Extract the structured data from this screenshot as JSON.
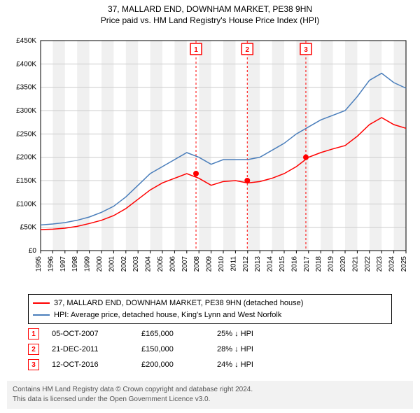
{
  "title": "37, MALLARD END, DOWNHAM MARKET, PE38 9HN",
  "subtitle": "Price paid vs. HM Land Registry's House Price Index (HPI)",
  "chart": {
    "type": "line",
    "background_color": "#ffffff",
    "plot_bg_alt": "#f0f0f0",
    "grid_color": "#cccccc",
    "axis_color": "#000000",
    "axis_fontsize": 10,
    "xlim": [
      1995,
      2025
    ],
    "ylim": [
      0,
      450000
    ],
    "ytick_step": 50000,
    "yticks": [
      "£0",
      "£50K",
      "£100K",
      "£150K",
      "£200K",
      "£250K",
      "£300K",
      "£350K",
      "£400K",
      "£450K"
    ],
    "xticks": [
      "1995",
      "1996",
      "1997",
      "1998",
      "1999",
      "2000",
      "2001",
      "2002",
      "2003",
      "2004",
      "2005",
      "2006",
      "2007",
      "2008",
      "2009",
      "2010",
      "2011",
      "2012",
      "2013",
      "2014",
      "2015",
      "2016",
      "2017",
      "2018",
      "2019",
      "2020",
      "2021",
      "2022",
      "2023",
      "2024",
      "2025"
    ],
    "series": [
      {
        "name": "property_price",
        "label": "37, MALLARD END, DOWNHAM MARKET, PE38 9HN (detached house)",
        "color": "#ff0000",
        "line_width": 1.5,
        "points": [
          [
            1995,
            45000
          ],
          [
            1996,
            46000
          ],
          [
            1997,
            48000
          ],
          [
            1998,
            52000
          ],
          [
            1999,
            58000
          ],
          [
            2000,
            65000
          ],
          [
            2001,
            75000
          ],
          [
            2002,
            90000
          ],
          [
            2003,
            110000
          ],
          [
            2004,
            130000
          ],
          [
            2005,
            145000
          ],
          [
            2006,
            155000
          ],
          [
            2007,
            165000
          ],
          [
            2008,
            155000
          ],
          [
            2009,
            140000
          ],
          [
            2010,
            148000
          ],
          [
            2011,
            150000
          ],
          [
            2012,
            145000
          ],
          [
            2013,
            148000
          ],
          [
            2014,
            155000
          ],
          [
            2015,
            165000
          ],
          [
            2016,
            180000
          ],
          [
            2017,
            200000
          ],
          [
            2018,
            210000
          ],
          [
            2019,
            218000
          ],
          [
            2020,
            225000
          ],
          [
            2021,
            245000
          ],
          [
            2022,
            270000
          ],
          [
            2023,
            285000
          ],
          [
            2024,
            270000
          ],
          [
            2025,
            262000
          ]
        ]
      },
      {
        "name": "hpi",
        "label": "HPI: Average price, detached house, King's Lynn and West Norfolk",
        "color": "#4a7ebb",
        "line_width": 1.5,
        "points": [
          [
            1995,
            55000
          ],
          [
            1996,
            57000
          ],
          [
            1997,
            60000
          ],
          [
            1998,
            65000
          ],
          [
            1999,
            72000
          ],
          [
            2000,
            82000
          ],
          [
            2001,
            95000
          ],
          [
            2002,
            115000
          ],
          [
            2003,
            140000
          ],
          [
            2004,
            165000
          ],
          [
            2005,
            180000
          ],
          [
            2006,
            195000
          ],
          [
            2007,
            210000
          ],
          [
            2008,
            200000
          ],
          [
            2009,
            185000
          ],
          [
            2010,
            195000
          ],
          [
            2011,
            195000
          ],
          [
            2012,
            195000
          ],
          [
            2013,
            200000
          ],
          [
            2014,
            215000
          ],
          [
            2015,
            230000
          ],
          [
            2016,
            250000
          ],
          [
            2017,
            265000
          ],
          [
            2018,
            280000
          ],
          [
            2019,
            290000
          ],
          [
            2020,
            300000
          ],
          [
            2021,
            330000
          ],
          [
            2022,
            365000
          ],
          [
            2023,
            380000
          ],
          [
            2024,
            360000
          ],
          [
            2025,
            348000
          ]
        ]
      }
    ],
    "sale_markers": [
      {
        "n": "1",
        "year": 2007.76,
        "price": 165000
      },
      {
        "n": "2",
        "year": 2011.97,
        "price": 150000
      },
      {
        "n": "3",
        "year": 2016.78,
        "price": 200000
      }
    ],
    "marker_line_color": "#ff0000",
    "marker_line_dash": "3,3",
    "marker_box_border": "#ff0000",
    "marker_box_text_color": "#ff0000"
  },
  "legend": {
    "rows": [
      {
        "color": "#ff0000",
        "label": "37, MALLARD END, DOWNHAM MARKET, PE38 9HN (detached house)"
      },
      {
        "color": "#4a7ebb",
        "label": "HPI: Average price, detached house, King's Lynn and West Norfolk"
      }
    ]
  },
  "sales": [
    {
      "n": "1",
      "date": "05-OCT-2007",
      "price": "£165,000",
      "diff": "25% ↓ HPI"
    },
    {
      "n": "2",
      "date": "21-DEC-2011",
      "price": "£150,000",
      "diff": "28% ↓ HPI"
    },
    {
      "n": "3",
      "date": "12-OCT-2016",
      "price": "£200,000",
      "diff": "24% ↓ HPI"
    }
  ],
  "attribution": {
    "line1": "Contains HM Land Registry data © Crown copyright and database right 2024.",
    "line2": "This data is licensed under the Open Government Licence v3.0."
  }
}
